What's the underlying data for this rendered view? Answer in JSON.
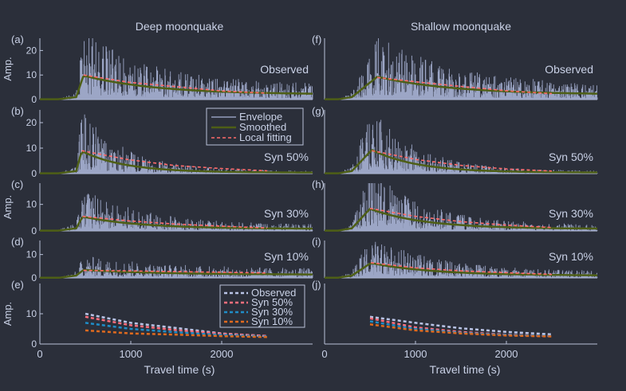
{
  "colors": {
    "background": "#2b2f3a",
    "axis": "#b9c2d8",
    "text": "#c9d1e6",
    "envelope": "#a9b4d6",
    "smoothed": "#4e5f16",
    "fit": "#ff6b6b",
    "observed_fit": "#b9c4e6",
    "syn50_fit": "#ff6f7d",
    "syn30_fit": "#1f8ec9",
    "syn10_fit": "#e06a1e"
  },
  "column_titles": [
    "Deep moonquake",
    "Shallow moonquake"
  ],
  "xlabel": "Travel time (s)",
  "ylabel": "Amp.",
  "legend_top": [
    "Envelope",
    "Smoothed",
    "Local fitting"
  ],
  "legend_bottom": [
    "Observed",
    "Syn 50%",
    "Syn 30%",
    "Syn 10%"
  ],
  "chart_data": [
    {
      "panel": "(a)",
      "type": "line",
      "column": "Deep moonquake",
      "label": "Observed",
      "xlim": [
        0,
        3000
      ],
      "ylim": [
        0,
        25
      ],
      "yticks": [
        0,
        10,
        20
      ],
      "show_ylabel": true,
      "onset": 200,
      "peak_start": 400,
      "peak_time": 480,
      "peak": 10,
      "floor": 2.1,
      "decay": 800,
      "fit_end": 2500,
      "fit_values": [
        10,
        7,
        5.3,
        3.5,
        2.6
      ],
      "spike": 2.6
    },
    {
      "panel": "(b)",
      "type": "line",
      "column": "Deep moonquake",
      "label": "Syn 50%",
      "xlim": [
        0,
        3000
      ],
      "ylim": [
        0,
        25
      ],
      "yticks": [
        0,
        10,
        20
      ],
      "show_ylabel": false,
      "onset": 200,
      "peak_start": 400,
      "peak_time": 460,
      "peak": 9,
      "floor": 0.4,
      "decay": 480,
      "fit_end": 2500,
      "fit_values": [
        9,
        5.5,
        3.2,
        2,
        1.1
      ],
      "spike": 2.6
    },
    {
      "panel": "(c)",
      "type": "line",
      "column": "Deep moonquake",
      "label": "Syn 30%",
      "xlim": [
        0,
        3000
      ],
      "ylim": [
        0,
        18
      ],
      "yticks": [
        0,
        10
      ],
      "show_ylabel": true,
      "onset": 200,
      "peak_start": 400,
      "peak_time": 470,
      "peak": 5.5,
      "floor": 0.8,
      "decay": 650,
      "fit_end": 2500,
      "fit_values": [
        5.5,
        3.8,
        2.6,
        1.8,
        1.1
      ],
      "spike": 2.8
    },
    {
      "panel": "(d)",
      "type": "line",
      "column": "Deep moonquake",
      "label": "Syn 10%",
      "xlim": [
        0,
        3000
      ],
      "ylim": [
        0,
        16
      ],
      "yticks": [
        0,
        10
      ],
      "show_ylabel": false,
      "onset": 220,
      "peak_start": 400,
      "peak_time": 480,
      "peak": 3.5,
      "floor": 1.4,
      "decay": 900,
      "fit_end": 2500,
      "fit_values": [
        3.2,
        3,
        2.7,
        2.4,
        2.1
      ],
      "spike": 2.6
    },
    {
      "panel": "(f)",
      "type": "line",
      "column": "Shallow moonquake",
      "label": "Observed",
      "xlim": [
        0,
        3000
      ],
      "ylim": [
        0,
        25
      ],
      "yticks": [],
      "show_ylabel": false,
      "onset": 150,
      "peak_start": 300,
      "peak_time": 580,
      "peak": 9.5,
      "floor": 2,
      "decay": 850,
      "fit_end": 2500,
      "fit_values": [
        9,
        7,
        5.2,
        3.5,
        2.4
      ],
      "spike": 2.6
    },
    {
      "panel": "(g)",
      "type": "line",
      "column": "Shallow moonquake",
      "label": "Syn 50%",
      "xlim": [
        0,
        3000
      ],
      "ylim": [
        0,
        25
      ],
      "yticks": [],
      "show_ylabel": false,
      "onset": 150,
      "peak_start": 300,
      "peak_time": 520,
      "peak": 9.5,
      "floor": 0.4,
      "decay": 500,
      "fit_end": 2500,
      "fit_values": [
        9,
        5.5,
        3.2,
        1.8,
        1
      ],
      "spike": 2.6
    },
    {
      "panel": "(h)",
      "type": "line",
      "column": "Shallow moonquake",
      "label": "Syn 30%",
      "xlim": [
        0,
        3000
      ],
      "ylim": [
        0,
        18
      ],
      "yticks": [],
      "show_ylabel": false,
      "onset": 150,
      "peak_start": 300,
      "peak_time": 500,
      "peak": 8.5,
      "floor": 0.8,
      "decay": 600,
      "fit_end": 2500,
      "fit_values": [
        8.5,
        5.5,
        3.5,
        2.2,
        1.3
      ],
      "spike": 2.6
    },
    {
      "panel": "(i)",
      "type": "line",
      "column": "Shallow moonquake",
      "label": "Syn 10%",
      "xlim": [
        0,
        3000
      ],
      "ylim": [
        0,
        16
      ],
      "yticks": [],
      "show_ylabel": false,
      "onset": 150,
      "peak_start": 300,
      "peak_time": 510,
      "peak": 6.5,
      "floor": 1,
      "decay": 700,
      "fit_end": 2500,
      "fit_values": [
        6.5,
        4.3,
        3,
        2.2,
        1.5
      ],
      "spike": 2.6
    },
    {
      "panel": "(e)",
      "type": "line",
      "column": "Deep moonquake",
      "xlim": [
        0,
        3000
      ],
      "ylim": [
        0,
        20
      ],
      "yticks": [
        0,
        10
      ],
      "xticks": [
        0,
        1000,
        2000
      ],
      "show_ylabel": true,
      "x": [
        500,
        1000,
        1500,
        2000,
        2500
      ],
      "series": [
        {
          "name": "Observed",
          "values": [
            10,
            7,
            5.3,
            3.5,
            2.6
          ]
        },
        {
          "name": "Syn 50%",
          "values": [
            9,
            6.2,
            4.6,
            3.4,
            2.7
          ]
        },
        {
          "name": "Syn 30%",
          "values": [
            7,
            5,
            3.9,
            3,
            2.5
          ]
        },
        {
          "name": "Syn 10%",
          "values": [
            4.5,
            3.5,
            3.1,
            2.6,
            2.3
          ]
        }
      ]
    },
    {
      "panel": "(j)",
      "type": "line",
      "column": "Shallow moonquake",
      "xlim": [
        0,
        3000
      ],
      "ylim": [
        0,
        20
      ],
      "yticks": [],
      "xticks": [
        0,
        1000,
        2000
      ],
      "show_ylabel": false,
      "x": [
        500,
        1000,
        1500,
        2000,
        2500
      ],
      "series": [
        {
          "name": "Observed",
          "values": [
            9,
            7,
            5.2,
            4,
            3.2
          ]
        },
        {
          "name": "Syn 50%",
          "values": [
            8.5,
            5.5,
            4,
            3.1,
            2.6
          ]
        },
        {
          "name": "Syn 30%",
          "values": [
            7.5,
            5,
            3.7,
            3,
            2.6
          ]
        },
        {
          "name": "Syn 10%",
          "values": [
            6.5,
            4.5,
            3.5,
            2.8,
            2.5
          ]
        }
      ]
    }
  ]
}
